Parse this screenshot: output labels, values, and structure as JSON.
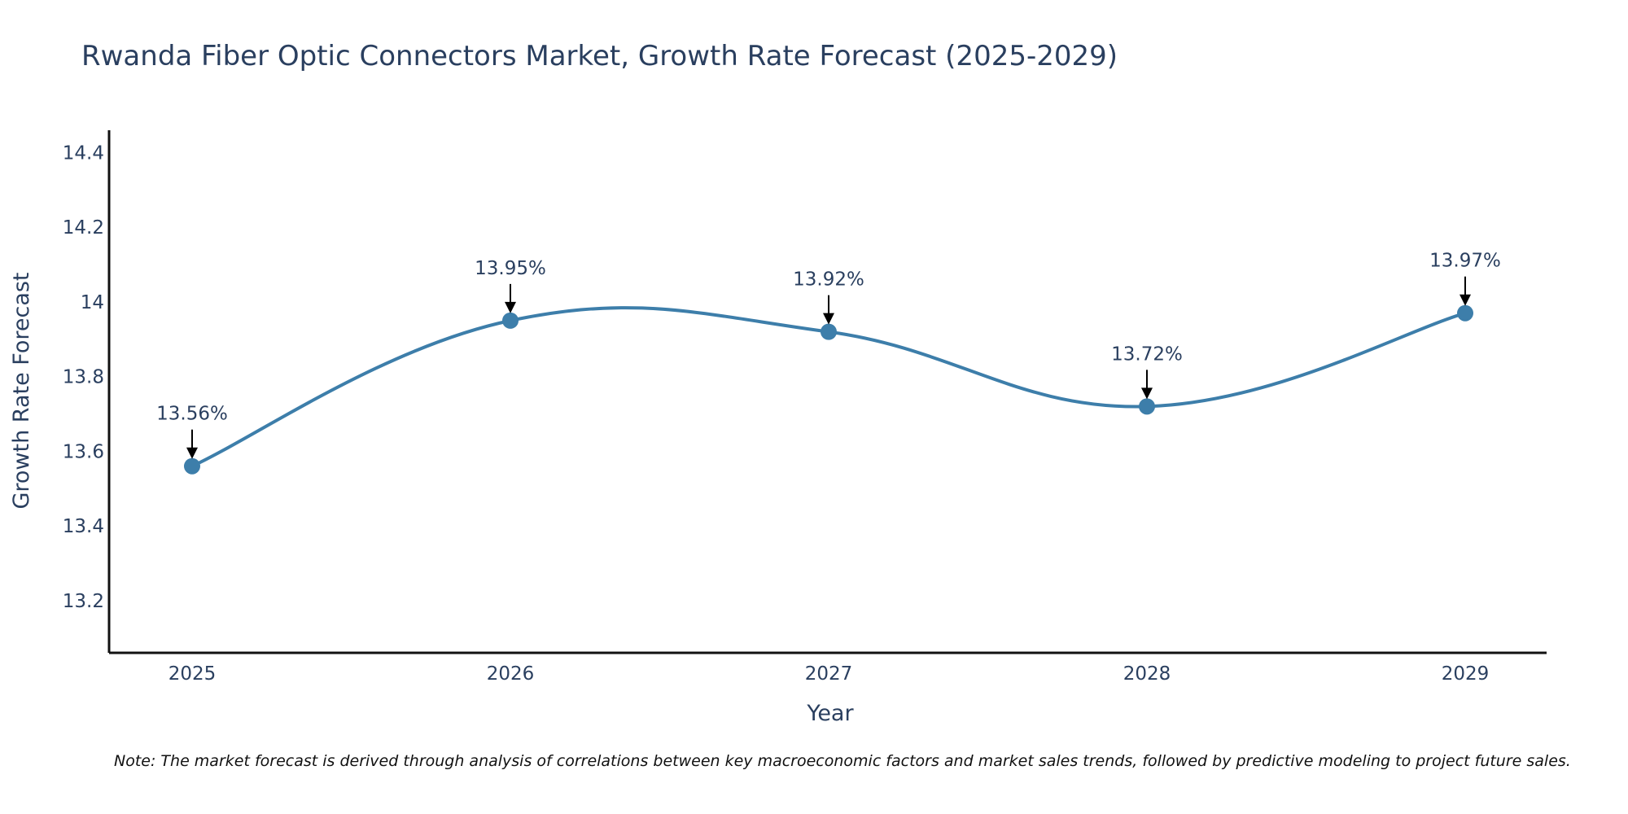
{
  "chart_data": {
    "type": "line",
    "title": "Rwanda Fiber Optic Connectors Market, Growth Rate Forecast (2025-2029)",
    "xlabel": "Year",
    "ylabel": "Growth Rate Forecast",
    "categories": [
      "2025",
      "2026",
      "2027",
      "2028",
      "2029"
    ],
    "values": [
      13.56,
      13.95,
      13.92,
      13.72,
      13.97
    ],
    "data_labels": [
      "13.56%",
      "13.95%",
      "13.92%",
      "13.72%",
      "13.97%"
    ],
    "ylim": [
      13.06,
      14.46
    ],
    "yticks": [
      13.2,
      13.4,
      13.6,
      13.8,
      14,
      14.2,
      14.4
    ],
    "ytick_labels": [
      "13.2",
      "13.4",
      "13.6",
      "13.8",
      "14",
      "14.2",
      "14.4"
    ],
    "line_shape": "spline",
    "grid": false,
    "legend": "none",
    "line_color": "#3d7eaa",
    "marker_color": "#3d7eaa"
  },
  "note": "Note: The market forecast is derived through analysis of correlations between key macroeconomic factors and market sales trends, followed by predictive modeling to project future sales."
}
